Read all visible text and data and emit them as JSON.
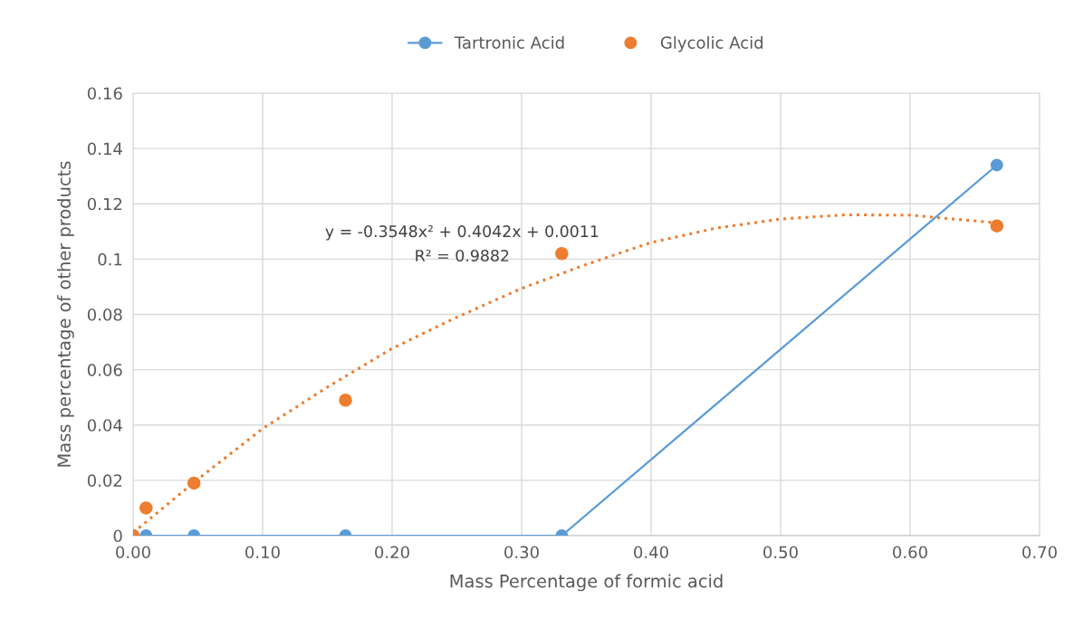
{
  "chart_data": {
    "type": "scatter",
    "xlabel": "Mass Percentage of formic acid",
    "ylabel": "Mass percentage of other products",
    "xlim": [
      0,
      0.7
    ],
    "xticks": [
      {
        "value": 0,
        "label": "0.00"
      },
      {
        "value": 0.1,
        "label": "0.10"
      },
      {
        "value": 0.2,
        "label": "0.20"
      },
      {
        "value": 0.3,
        "label": "0.30"
      },
      {
        "value": 0.4,
        "label": "0.40"
      },
      {
        "value": 0.5,
        "label": "0.50"
      },
      {
        "value": 0.6,
        "label": "0.60"
      },
      {
        "value": 0.7,
        "label": "0.70"
      }
    ],
    "ylim": [
      0,
      0.16
    ],
    "yticks": [
      0,
      0.02,
      0.04,
      0.06,
      0.08,
      0.1,
      0.12,
      0.14,
      0.16
    ],
    "grid": true,
    "legend": "top",
    "series": [
      {
        "name": "Tartronic Acid",
        "type": "line",
        "color": "#5b9bd5",
        "marker": "circle",
        "line_style": "solid",
        "x": [
          0,
          0.01,
          0.047,
          0.164,
          0.331,
          0.667
        ],
        "values": [
          0,
          0,
          0,
          0,
          0,
          0.134
        ]
      },
      {
        "name": "Glycolic Acid",
        "color": "#ed7d31",
        "marker": "circle",
        "x": [
          0,
          0.01,
          0.047,
          0.164,
          0.331,
          0.667
        ],
        "values": [
          0,
          0.01,
          0.019,
          0.049,
          0.102,
          0.112
        ]
      },
      {
        "type": "line",
        "color": "#ed7d31",
        "marker": "none",
        "line_style": "dotted",
        "x": [
          0,
          0.05,
          0.1,
          0.15,
          0.2,
          0.25,
          0.3,
          0.35,
          0.4,
          0.45,
          0.5,
          0.55,
          0.6,
          0.667
        ],
        "values": [
          0.0011,
          0.0204,
          0.0387,
          0.0537,
          0.0677,
          0.079,
          0.0894,
          0.0981,
          0.106,
          0.1112,
          0.1145,
          0.116,
          0.1159,
          0.1131
        ]
      }
    ],
    "annotations": [
      "y = -0.3548x² + 0.4042x + 0.0011",
      "R² = 0.9882"
    ]
  }
}
